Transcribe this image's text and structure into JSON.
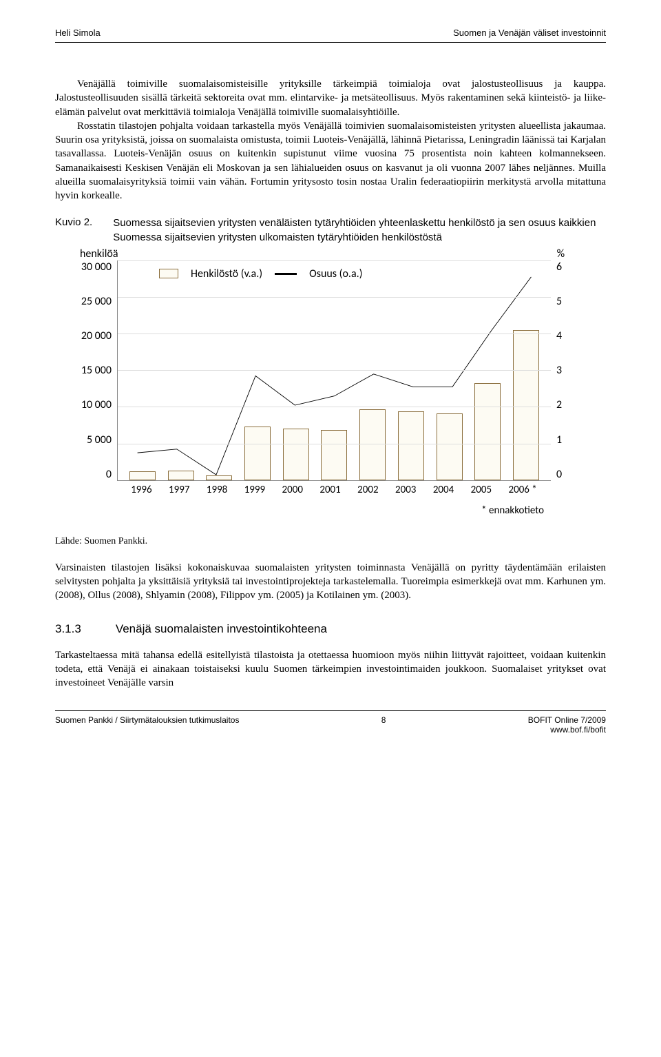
{
  "header": {
    "left": "Heli Simola",
    "right": "Suomen ja Venäjän väliset investoinnit"
  },
  "para1": "Venäjällä toimiville suomalaisomisteisille yrityksille tärkeimpiä toimialoja ovat jalostusteollisuus ja kauppa. Jalostusteollisuuden sisällä tärkeitä sektoreita ovat mm. elintarvike- ja metsäteollisuus. Myös rakentaminen sekä kiinteistö- ja liike-elämän palvelut ovat merkittäviä toimialoja Venäjällä toimiville suomalaisyhtiöille.",
  "para2": "Rosstatin tilastojen pohjalta voidaan tarkastella myös Venäjällä toimivien suomalaisomisteisten yritysten alueellista jakaumaa. Suurin osa yrityksistä, joissa on suomalaista omistusta, toimii Luoteis-Venäjällä, lähinnä Pietarissa, Leningradin läänissä tai Karjalan tasavallassa. Luoteis-Venäjän osuus on kuitenkin supistunut viime vuosina 75 prosentista noin kahteen kolmannekseen. Samanaikaisesti Keskisen Venäjän eli Moskovan ja sen lähialueiden osuus on kasvanut ja oli vuonna 2007 lähes neljännes. Muilla alueilla suomalaisyrityksiä toimii vain vähän. Fortumin yritysosto tosin nostaa Uralin federaatiopiirin merkitystä arvolla mitattuna hyvin korkealle.",
  "kuvio": {
    "label": "Kuvio 2.",
    "title": "Suomessa sijaitsevien yritysten venäläisten tytäryhtiöiden yhteenlaskettu henkilöstö ja sen osuus kaikkien Suomessa sijaitsevien yritysten ulkomaisten tytäryhtiöiden henkilöstöstä"
  },
  "chart": {
    "type": "bar+line",
    "y_left_label": "henkilöä",
    "y_right_label": "%",
    "left_ticks": [
      "30 000",
      "25 000",
      "20 000",
      "15 000",
      "10 000",
      "5 000",
      "0"
    ],
    "right_ticks": [
      "6",
      "5",
      "4",
      "3",
      "2",
      "1",
      "0"
    ],
    "categories": [
      "1996",
      "1997",
      "1998",
      "1999",
      "2000",
      "2001",
      "2002",
      "2003",
      "2004",
      "2005",
      "2006 *"
    ],
    "bar_values": [
      1200,
      1300,
      600,
      7300,
      7000,
      6800,
      9700,
      9400,
      9100,
      13200,
      20500
    ],
    "line_values": [
      0.75,
      0.85,
      0.15,
      2.85,
      2.05,
      2.3,
      2.9,
      2.55,
      2.55,
      4.1,
      5.55
    ],
    "y_left_max": 30000,
    "y_right_max": 6,
    "bar_fill": "#fdfbf3",
    "bar_border": "#8a6d3b",
    "line_color": "#000000",
    "grid_color": "#dddddd",
    "legend": {
      "bar_label": "Henkilöstö (v.a.)",
      "line_label": "Osuus (o.a.)"
    },
    "note": "* ennakkotieto"
  },
  "source": "Lähde: Suomen Pankki.",
  "para3": "Varsinaisten tilastojen lisäksi kokonaiskuvaa suomalaisten yritysten toiminnasta Venäjällä on pyritty täydentämään erilaisten selvitysten pohjalta ja yksittäisiä yrityksiä tai investointiprojekteja tarkastelemalla. Tuoreimpia esimerkkejä ovat mm. Karhunen ym. (2008), Ollus (2008), Shlyamin (2008), Filippov ym. (2005) ja Kotilainen ym. (2003).",
  "section": {
    "num": "3.1.3",
    "title": "Venäjä suomalaisten investointikohteena"
  },
  "para4": "Tarkasteltaessa mitä tahansa edellä esitellyistä tilastoista ja otettaessa huomioon myös niihin liittyvät rajoitteet, voidaan kuitenkin todeta, että Venäjä ei ainakaan toistaiseksi kuulu Suomen tärkeimpien investointimaiden joukkoon. Suomalaiset yritykset ovat investoineet Venäjälle varsin",
  "footer": {
    "left": "Suomen Pankki / Siirtymätalouksien tutkimuslaitos",
    "page": "8",
    "right1": "BOFIT Online 7/2009",
    "right2": "www.bof.fi/bofit"
  }
}
